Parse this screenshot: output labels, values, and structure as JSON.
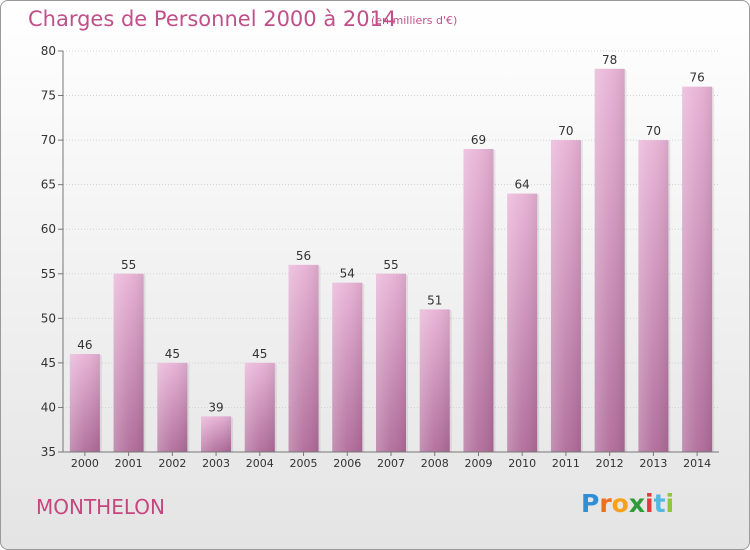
{
  "header": {
    "title": "Charges de Personnel 2000 à 2014",
    "subtitle": "(en milliers d'€)"
  },
  "footer": {
    "commune": "MONTHELON",
    "logo_letters": [
      "P",
      "r",
      "o",
      "x",
      "i",
      "t",
      "i"
    ],
    "logo_colors": [
      "#2e8fd6",
      "#ef6d1c",
      "#f5a21a",
      "#2f9c3a",
      "#e23a3a",
      "#55b8e0",
      "#8dc63f"
    ]
  },
  "colors": {
    "bar_top": "#e8b2d6",
    "bar_bottom": "#b06c9a",
    "title": "#c0508a",
    "axis": "#777777"
  },
  "chart_data": {
    "type": "bar",
    "categories": [
      "2000",
      "2001",
      "2002",
      "2003",
      "2004",
      "2005",
      "2006",
      "2007",
      "2008",
      "2009",
      "2010",
      "2011",
      "2012",
      "2013",
      "2014"
    ],
    "values": [
      46,
      55,
      45,
      39,
      45,
      56,
      54,
      55,
      51,
      69,
      64,
      70,
      78,
      70,
      76
    ],
    "ylim": [
      35,
      80
    ],
    "yticks": [
      35,
      40,
      45,
      50,
      55,
      60,
      65,
      70,
      75,
      80
    ],
    "grid": true,
    "legend": "none"
  }
}
